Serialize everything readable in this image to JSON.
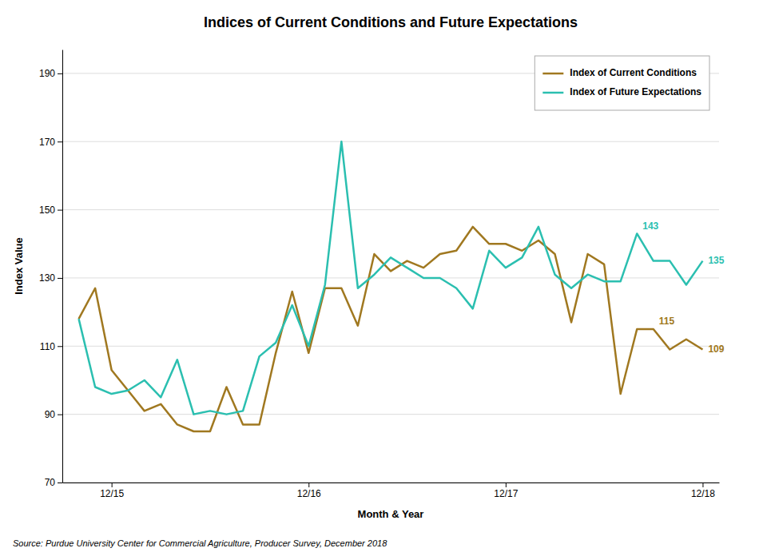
{
  "chart_data": {
    "type": "line",
    "title": "Indices of Current Conditions and Future Expectations",
    "x_label": "Month & Year",
    "y_label": "Index Value",
    "source": "Source: Purdue University Center for Commercial Agriculture, Producer Survey, December 2018",
    "categories": [
      null,
      null,
      "12/15",
      null,
      null,
      null,
      null,
      null,
      null,
      null,
      null,
      null,
      null,
      null,
      "12/16",
      null,
      null,
      null,
      null,
      null,
      null,
      null,
      null,
      null,
      null,
      null,
      "12/17",
      null,
      null,
      null,
      null,
      null,
      null,
      null,
      null,
      null,
      null,
      null,
      "12/18"
    ],
    "ylim": [
      70,
      197
    ],
    "yticks": [
      70,
      90,
      110,
      130,
      150,
      170,
      190
    ],
    "grid": true,
    "legend": "upper right",
    "series": [
      {
        "name": "Index of Current Conditions",
        "color": "#A07820",
        "values": [
          118,
          127,
          103,
          97,
          91,
          93,
          87,
          85,
          85,
          98,
          87,
          87,
          108,
          126,
          108,
          127,
          127,
          116,
          137,
          132,
          135,
          133,
          137,
          138,
          145,
          140,
          140,
          138,
          141,
          137,
          117,
          137,
          134,
          96,
          115,
          115,
          109,
          112,
          109
        ],
        "annotations": [
          {
            "index": 35,
            "text": "115"
          },
          {
            "index": 38,
            "text": "109"
          }
        ]
      },
      {
        "name": "Index of Future Expectations",
        "color": "#2BBFB0",
        "values": [
          118,
          98,
          96,
          97,
          100,
          95,
          106,
          90,
          91,
          90,
          91,
          107,
          111,
          122,
          110,
          128,
          170,
          127,
          131,
          136,
          133,
          130,
          130,
          127,
          121,
          138,
          133,
          136,
          145,
          131,
          127,
          131,
          129,
          129,
          143,
          135,
          135,
          128,
          135
        ],
        "annotations": [
          {
            "index": 34,
            "text": "143"
          },
          {
            "index": 38,
            "text": "135"
          }
        ]
      }
    ]
  }
}
